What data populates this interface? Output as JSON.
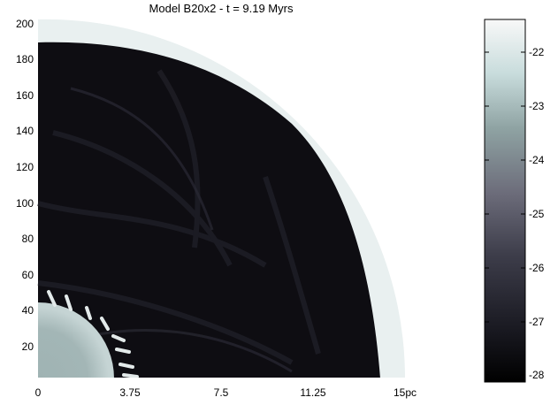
{
  "title": "Model B20x2 - t = 9.19 Myrs",
  "x_axis": {
    "ticks": [
      {
        "label": "0",
        "value": 0
      },
      {
        "label": "3.75",
        "value": 3.75
      },
      {
        "label": "7.5",
        "value": 7.5
      },
      {
        "label": "11.25",
        "value": 11.25
      },
      {
        "label": "15pc",
        "value": 15
      }
    ],
    "range": [
      0,
      15
    ]
  },
  "y_axis": {
    "ticks": [
      "20",
      "40",
      "60",
      "80",
      "100",
      "120",
      "140",
      "160",
      "180",
      "200"
    ],
    "range": [
      0,
      200
    ]
  },
  "colorbar": {
    "ticks": [
      "-22",
      "-23",
      "-24",
      "-25",
      "-26",
      "-27",
      "-28"
    ],
    "range": [
      -28.1,
      -21.4
    ],
    "colormap": [
      "#000000",
      "#1a1a22",
      "#3d3d4a",
      "#6c6c7a",
      "#8fa3a3",
      "#c8dcdc",
      "#f8f8f8"
    ]
  },
  "colors": {
    "shell": "#e9f0f0",
    "cavity_dark": "#0e0d12",
    "inner_sphere": "#9fb3b3"
  }
}
